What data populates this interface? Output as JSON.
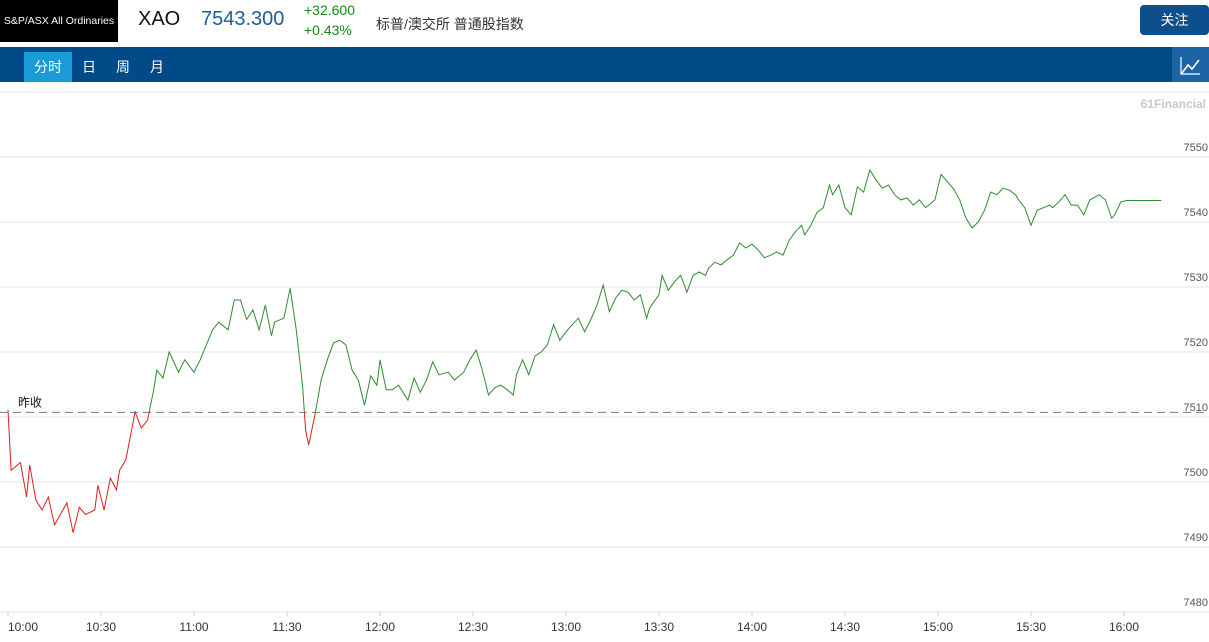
{
  "header": {
    "logo": "S&P/ASX All Ordinaries",
    "symbol": "XAO",
    "price": "7543.300",
    "change": "+32.600",
    "change_pct": "+0.43%",
    "name": "标普/澳交所 普通股指数",
    "follow_button": "关注"
  },
  "tabs": [
    "分时",
    "日",
    "周",
    "月"
  ],
  "active_tab": 0,
  "chart_data": {
    "type": "line",
    "watermark": "61Financial",
    "previous_close": {
      "label": "昨收",
      "value": 7510.7
    },
    "color_up": "#2e8b2e",
    "color_down": "#d9201f",
    "x": [
      "10:00",
      "10:01",
      "10:04",
      "10:06",
      "10:07",
      "10:09",
      "10:11",
      "10:13",
      "10:15",
      "10:19",
      "10:21",
      "10:23",
      "10:25",
      "10:28",
      "10:29",
      "10:31",
      "10:33",
      "10:35",
      "10:36",
      "10:38",
      "10:41",
      "10:43",
      "10:45",
      "10:47",
      "10:48",
      "10:50",
      "10:52",
      "10:55",
      "10:57",
      "11:00",
      "11:02",
      "11:04",
      "11:06",
      "11:08",
      "11:11",
      "11:13",
      "11:15",
      "11:17",
      "11:19",
      "11:21",
      "11:23",
      "11:25",
      "11:26",
      "11:29",
      "11:31",
      "11:33",
      "11:35",
      "11:36",
      "11:37",
      "11:39",
      "11:41",
      "11:43",
      "11:45",
      "11:47",
      "11:49",
      "11:51",
      "11:53",
      "11:55",
      "11:57",
      "11:59",
      "12:00",
      "12:02",
      "12:04",
      "12:06",
      "12:09",
      "12:11",
      "12:13",
      "12:15",
      "12:17",
      "12:19",
      "12:22",
      "12:24",
      "12:27",
      "12:29",
      "12:31",
      "12:33",
      "12:35",
      "12:37",
      "12:39",
      "12:41",
      "12:43",
      "12:44",
      "12:46",
      "12:48",
      "12:50",
      "12:52",
      "12:54",
      "12:56",
      "12:58",
      "13:00",
      "13:02",
      "13:04",
      "13:06",
      "13:08",
      "13:10",
      "13:12",
      "13:14",
      "13:16",
      "13:18",
      "13:20",
      "13:22",
      "13:24",
      "13:26",
      "13:27",
      "13:30",
      "13:31",
      "13:33",
      "13:35",
      "13:37",
      "13:39",
      "13:41",
      "13:43",
      "13:45",
      "13:46",
      "13:48",
      "13:50",
      "13:52",
      "13:54",
      "13:56",
      "13:58",
      "14:00",
      "14:02",
      "14:04",
      "14:06",
      "14:08",
      "14:10",
      "14:12",
      "14:14",
      "14:16",
      "14:17",
      "14:19",
      "14:21",
      "14:23",
      "14:25",
      "14:26",
      "14:28",
      "14:30",
      "14:32",
      "14:34",
      "14:36",
      "14:38",
      "14:40",
      "14:42",
      "14:44",
      "14:46",
      "14:48",
      "14:50",
      "14:52",
      "14:54",
      "14:56",
      "14:57",
      "14:59",
      "15:01",
      "15:03",
      "15:05",
      "15:07",
      "15:09",
      "15:11",
      "15:13",
      "15:15",
      "15:17",
      "15:19",
      "15:21",
      "15:23",
      "15:25",
      "15:26",
      "15:28",
      "15:30",
      "15:32",
      "15:34",
      "15:36",
      "15:37",
      "15:39",
      "15:41",
      "15:43",
      "15:45",
      "15:47",
      "15:49",
      "15:52",
      "15:54",
      "15:56",
      "15:57",
      "15:59",
      "16:01",
      "16:12"
    ],
    "values": [
      7511.1,
      7501.8,
      7503.0,
      7497.7,
      7502.6,
      7497.2,
      7495.7,
      7497.7,
      7493.4,
      7496.8,
      7492.2,
      7496.1,
      7495.0,
      7495.7,
      7499.5,
      7495.7,
      7500.6,
      7498.8,
      7501.8,
      7503.4,
      7510.8,
      7508.3,
      7509.5,
      7514.2,
      7517.2,
      7516.0,
      7520.0,
      7516.9,
      7518.8,
      7516.9,
      7518.8,
      7521.1,
      7523.4,
      7524.6,
      7523.4,
      7528.0,
      7528.0,
      7525.0,
      7526.5,
      7523.4,
      7527.2,
      7522.5,
      7524.6,
      7525.2,
      7529.8,
      7523.4,
      7514.9,
      7508.0,
      7505.7,
      7510.3,
      7515.7,
      7518.8,
      7521.4,
      7521.8,
      7521.1,
      7517.2,
      7515.7,
      7511.8,
      7516.3,
      7514.9,
      7518.8,
      7514.2,
      7514.2,
      7514.9,
      7512.6,
      7516.0,
      7513.8,
      7515.7,
      7518.5,
      7516.5,
      7516.9,
      7515.7,
      7516.9,
      7518.8,
      7520.3,
      7517.2,
      7513.4,
      7514.5,
      7514.9,
      7514.2,
      7513.4,
      7516.5,
      7518.8,
      7516.5,
      7519.4,
      7520.0,
      7521.1,
      7524.2,
      7521.8,
      7523.1,
      7524.2,
      7525.2,
      7523.1,
      7525.0,
      7527.2,
      7530.3,
      7526.2,
      7528.3,
      7529.5,
      7529.2,
      7528.0,
      7528.8,
      7525.2,
      7526.8,
      7528.8,
      7531.8,
      7529.5,
      7530.8,
      7531.8,
      7529.2,
      7531.8,
      7532.3,
      7531.8,
      7532.9,
      7533.8,
      7533.4,
      7534.2,
      7534.9,
      7536.8,
      7536.0,
      7536.6,
      7535.7,
      7534.5,
      7534.9,
      7535.4,
      7534.9,
      7537.2,
      7538.5,
      7539.5,
      7538.0,
      7539.5,
      7541.5,
      7542.2,
      7545.7,
      7544.2,
      7545.7,
      7542.2,
      7541.1,
      7545.4,
      7544.6,
      7548.0,
      7546.5,
      7545.2,
      7545.7,
      7544.2,
      7543.4,
      7543.7,
      7542.6,
      7543.4,
      7542.2,
      7542.6,
      7543.4,
      7547.3,
      7546.2,
      7545.1,
      7543.4,
      7540.6,
      7539.1,
      7540.0,
      7541.8,
      7544.6,
      7544.2,
      7545.2,
      7544.9,
      7544.2,
      7543.4,
      7542.2,
      7539.5,
      7541.8,
      7542.2,
      7542.6,
      7542.2,
      7543.1,
      7544.2,
      7542.6,
      7542.6,
      7541.1,
      7543.4,
      7544.2,
      7543.4,
      7540.6,
      7541.1,
      7543.1,
      7543.3,
      7543.3
    ],
    "xlim": [
      "10:00",
      "16:27"
    ],
    "xticks": [
      "10:00",
      "10:30",
      "11:00",
      "11:30",
      "12:00",
      "12:30",
      "13:00",
      "13:30",
      "14:00",
      "14:30",
      "15:00",
      "15:30",
      "16:00"
    ],
    "ylim": [
      7480,
      7560
    ],
    "yticks": [
      7480,
      7490,
      7500,
      7510,
      7520,
      7530,
      7540,
      7550
    ],
    "grid": true
  }
}
